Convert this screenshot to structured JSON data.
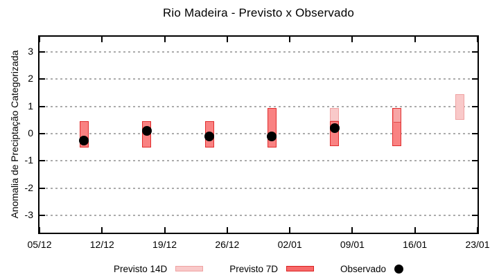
{
  "chart_data": {
    "type": "bar",
    "title": "Rio Madeira - Previsto x Observado",
    "ylabel": "Anomalia de Preciptação Categorizada",
    "xlabel": "",
    "grid": true,
    "legend_position": "below",
    "ylim": [
      -3.6,
      3.6
    ],
    "yticks": [
      3,
      2,
      1,
      0,
      -1,
      -2,
      -3
    ],
    "x_tick_labels": [
      "05/12",
      "12/12",
      "19/12",
      "26/12",
      "02/01",
      "09/01",
      "16/01",
      "23/01"
    ],
    "x_tick_days": [
      0,
      7,
      14,
      21,
      28,
      35,
      42,
      49
    ],
    "x_total_days": 49,
    "colors": {
      "previsto_14d_fill": "#f9c9c9",
      "previsto_14d_border": "#efa2a2",
      "previsto_7d_fill": "#f98282",
      "previsto_7d_border": "#e02c2c",
      "overlap_fill": "#f7a6a6",
      "observado": "#000000",
      "grid": "#ababab"
    },
    "bars": [
      {
        "date": "10/12",
        "day": 5,
        "previsto_7d": [
          -0.5,
          0.45
        ],
        "previsto_14d": null,
        "observado": -0.25
      },
      {
        "date": "17/12",
        "day": 12,
        "previsto_7d": [
          -0.5,
          0.45
        ],
        "previsto_14d": null,
        "observado": 0.1
      },
      {
        "date": "24/12",
        "day": 19,
        "previsto_7d": [
          -0.5,
          0.45
        ],
        "previsto_14d": null,
        "observado": -0.1
      },
      {
        "date": "31/12",
        "day": 26,
        "previsto_7d": [
          -0.5,
          0.95
        ],
        "previsto_14d": null,
        "observado": -0.1
      },
      {
        "date": "07/01",
        "day": 33,
        "previsto_7d": [
          -0.45,
          0.45
        ],
        "previsto_14d": [
          0.45,
          0.95
        ],
        "observado": 0.2
      },
      {
        "date": "14/01",
        "day": 40,
        "previsto_7d": [
          -0.45,
          0.95
        ],
        "previsto_14d": [
          0.4,
          0.95
        ],
        "observado": null
      },
      {
        "date": "21/01",
        "day": 47,
        "previsto_7d": null,
        "previsto_14d": [
          0.5,
          1.45
        ],
        "observado": null
      }
    ],
    "legend": [
      {
        "label": "Previsto 14D",
        "swatch": "box-light"
      },
      {
        "label": "Previsto 7D",
        "swatch": "box-dark"
      },
      {
        "label": "Observado",
        "swatch": "dot"
      }
    ]
  }
}
